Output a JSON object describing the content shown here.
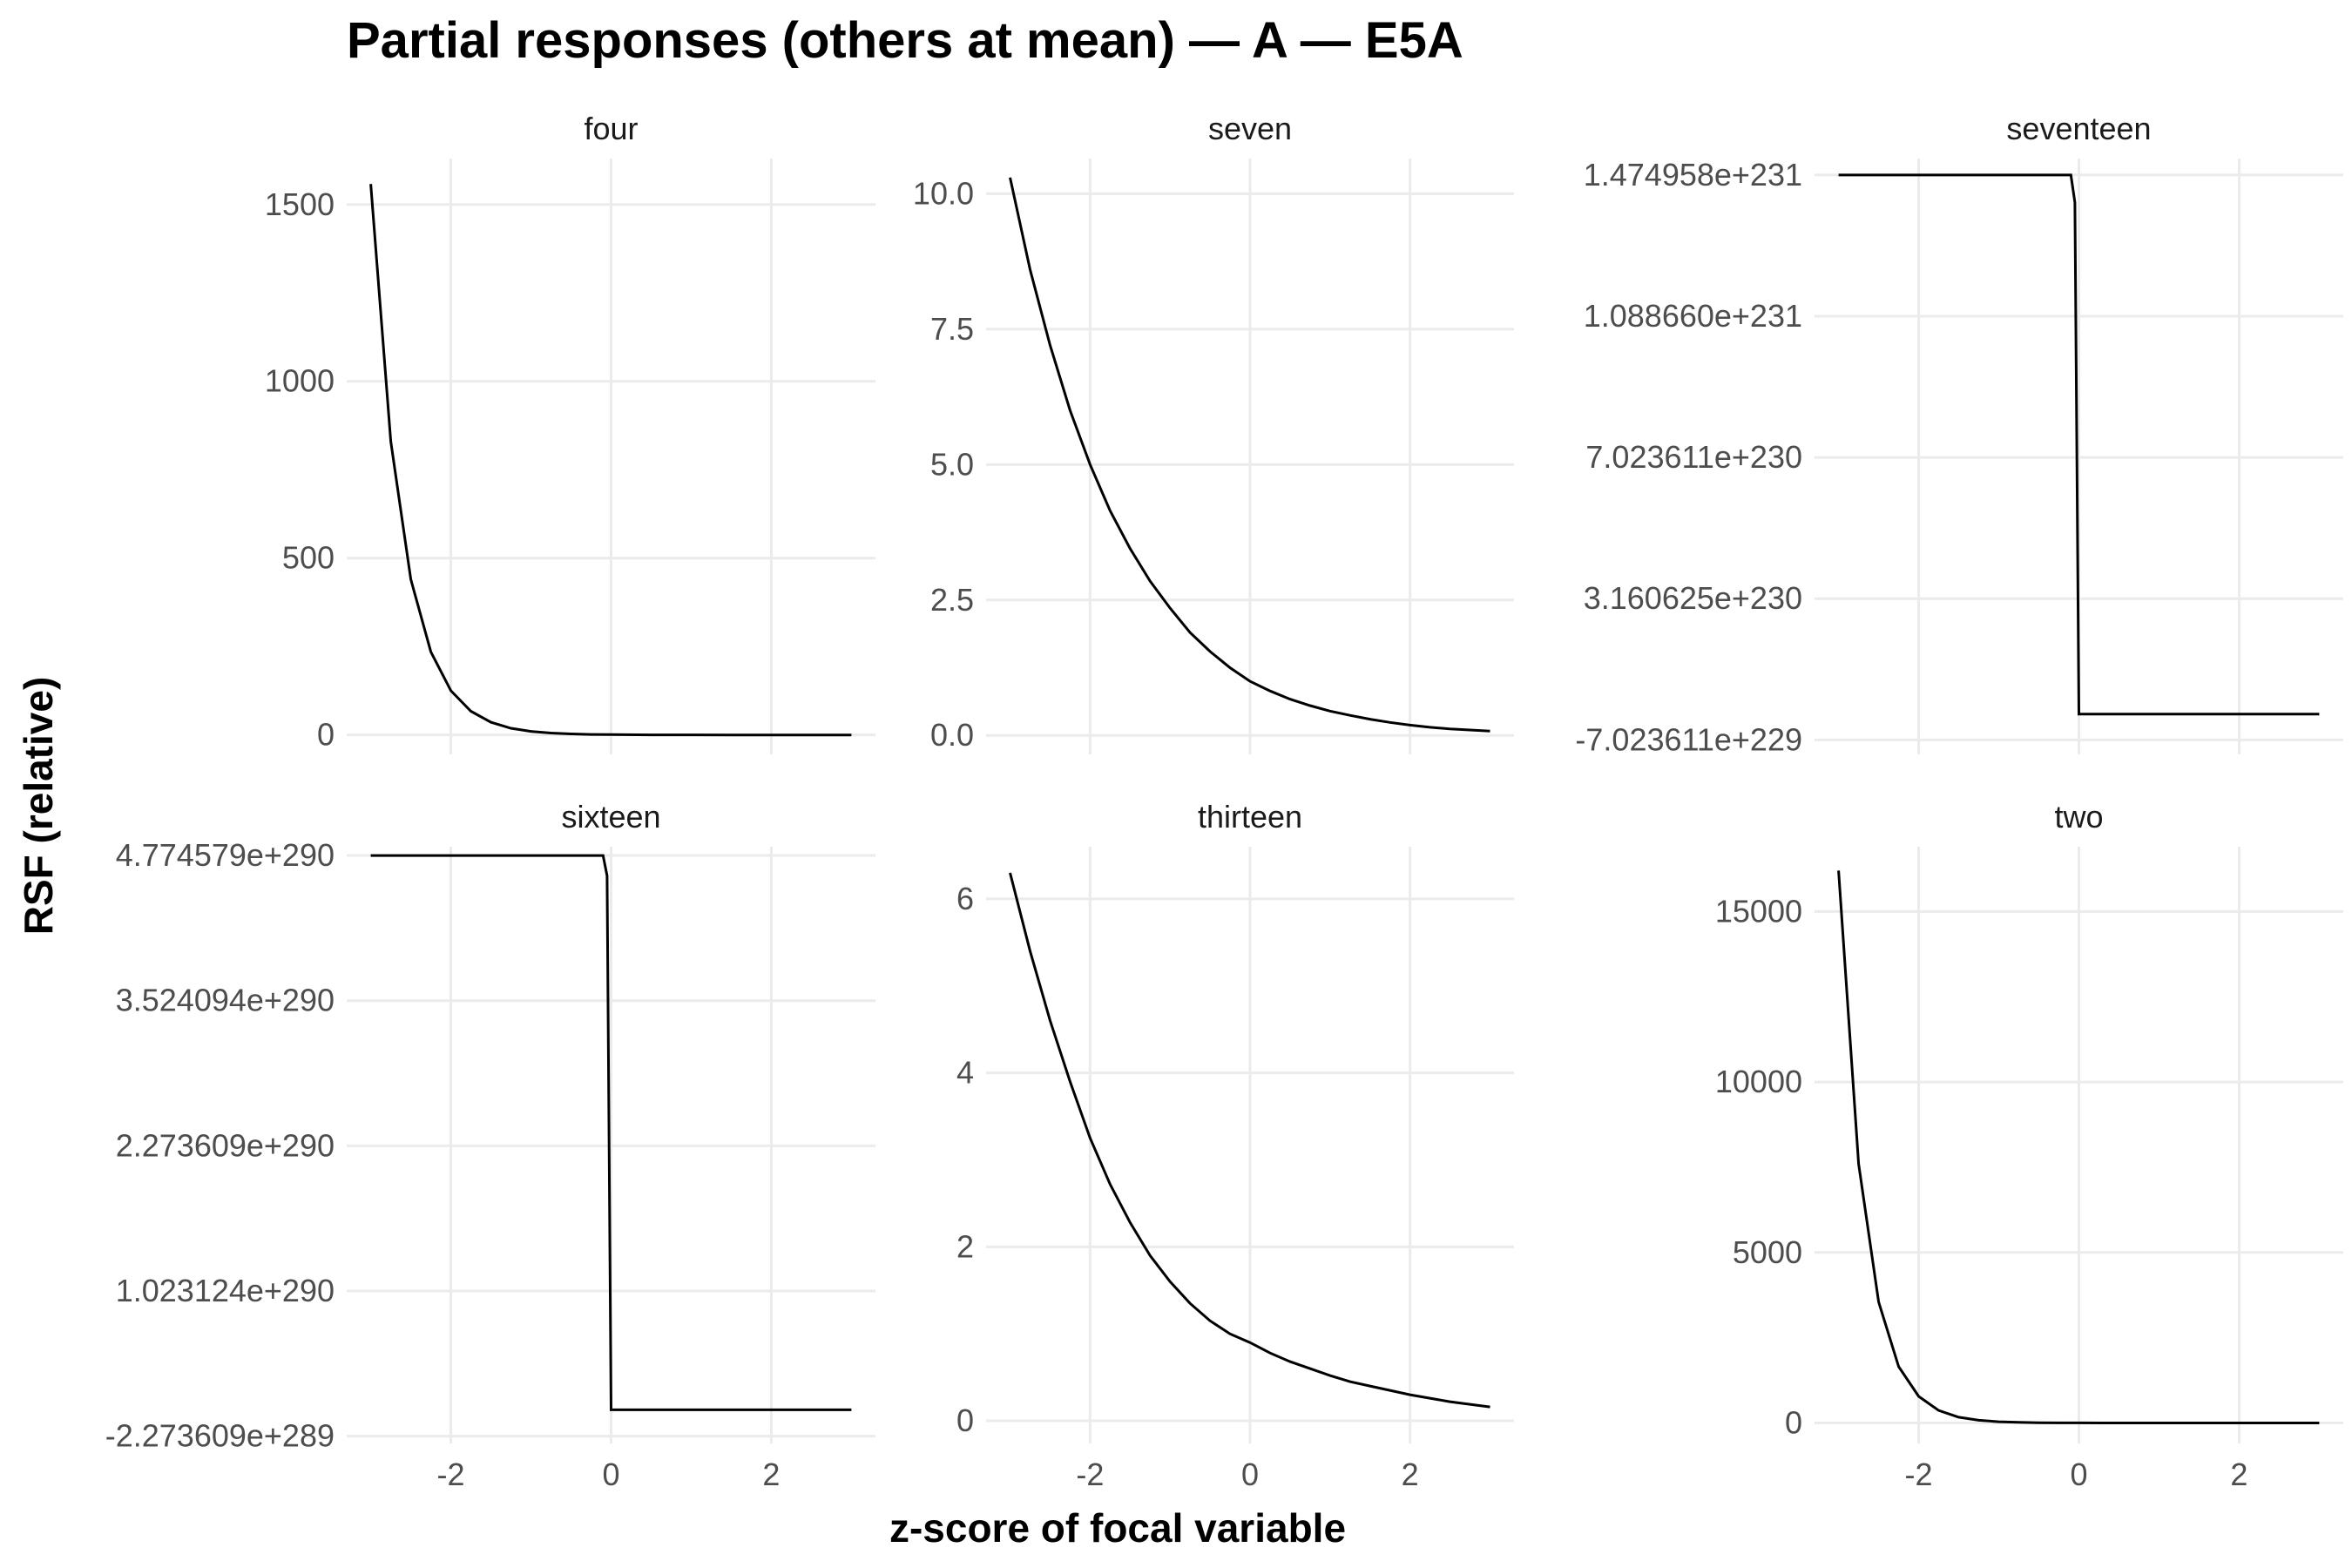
{
  "chart_data": {
    "type": "line",
    "title": "Partial responses (others at mean) — A — E5A",
    "xlabel": "z-score of focal variable",
    "ylabel": "RSF (relative)",
    "x_ticks": [
      "-2",
      "0",
      "2"
    ],
    "panels": [
      {
        "name": "four",
        "x": [
          -3.0,
          -2.75,
          -2.5,
          -2.25,
          -2.0,
          -1.75,
          -1.5,
          -1.25,
          -1.0,
          -0.75,
          -0.5,
          -0.25,
          0.0,
          0.5,
          1.0,
          1.5,
          2.0,
          2.5,
          3.0
        ],
        "y": [
          1558,
          830,
          440,
          235,
          125,
          67,
          36,
          19,
          10,
          5.3,
          2.8,
          1.5,
          0.8,
          0.2,
          0.06,
          0.02,
          0.0,
          0.0,
          0.0
        ],
        "yticks": [
          "0",
          "500",
          "1000",
          "1500"
        ],
        "ytick_values": [
          0,
          500,
          1000,
          1500
        ]
      },
      {
        "name": "seven",
        "x": [
          -3.0,
          -2.75,
          -2.5,
          -2.25,
          -2.0,
          -1.75,
          -1.5,
          -1.25,
          -1.0,
          -0.75,
          -0.5,
          -0.25,
          0.0,
          0.25,
          0.5,
          0.75,
          1.0,
          1.25,
          1.5,
          1.75,
          2.0,
          2.25,
          2.5,
          2.75,
          3.0
        ],
        "y": [
          10.3,
          8.6,
          7.2,
          6.0,
          5.0,
          4.15,
          3.45,
          2.85,
          2.35,
          1.9,
          1.55,
          1.25,
          1.0,
          0.82,
          0.67,
          0.55,
          0.45,
          0.37,
          0.3,
          0.24,
          0.19,
          0.15,
          0.12,
          0.1,
          0.08
        ],
        "yticks": [
          "0.0",
          "2.5",
          "5.0",
          "7.5",
          "10.0"
        ],
        "ytick_values": [
          0,
          2.5,
          5,
          7.5,
          10
        ]
      },
      {
        "name": "seventeen",
        "x": [
          -3.0,
          -0.1,
          -0.05,
          0.0,
          3.0
        ],
        "y": [
          1.474958e+231,
          1.474958e+231,
          1.4e+231,
          0,
          0
        ],
        "yticks": [
          "-7.023611e+229",
          "3.160625e+230",
          "7.023611e+230",
          "1.088660e+231",
          "1.474958e+231"
        ],
        "ytick_values": [
          -7.023611e+229,
          3.160625e+230,
          7.023611e+230,
          1.08866e+231,
          1.474958e+231
        ]
      },
      {
        "name": "sixteen",
        "x": [
          -3.0,
          -0.1,
          -0.05,
          0.0,
          3.0
        ],
        "y": [
          4.774579e+290,
          4.774579e+290,
          4.6e+290,
          0,
          0
        ],
        "yticks": [
          "-2.273609e+289",
          "1.023124e+290",
          "2.273609e+290",
          "3.524094e+290",
          "4.774579e+290"
        ],
        "ytick_values": [
          -2.273609e+289,
          1.023124e+290,
          2.273609e+290,
          3.524094e+290,
          4.774579e+290
        ]
      },
      {
        "name": "thirteen",
        "x": [
          -3.0,
          -2.75,
          -2.5,
          -2.25,
          -2.0,
          -1.75,
          -1.5,
          -1.25,
          -1.0,
          -0.75,
          -0.5,
          -0.25,
          0.0,
          0.25,
          0.5,
          0.75,
          1.0,
          1.25,
          1.5,
          1.75,
          2.0,
          2.25,
          2.5,
          2.75,
          3.0
        ],
        "y": [
          6.3,
          5.4,
          4.6,
          3.9,
          3.25,
          2.72,
          2.28,
          1.9,
          1.6,
          1.35,
          1.15,
          1.0,
          0.9,
          0.78,
          0.68,
          0.6,
          0.52,
          0.45,
          0.4,
          0.35,
          0.3,
          0.26,
          0.22,
          0.19,
          0.16
        ],
        "yticks": [
          "0",
          "2",
          "4",
          "6"
        ],
        "ytick_values": [
          0,
          2,
          4,
          6
        ]
      },
      {
        "name": "two",
        "x": [
          -3.0,
          -2.75,
          -2.5,
          -2.25,
          -2.0,
          -1.75,
          -1.5,
          -1.25,
          -1.0,
          -0.75,
          -0.5,
          -0.25,
          0.0,
          0.5,
          1.0,
          1.5,
          2.0,
          2.5,
          3.0
        ],
        "y": [
          16200,
          7600,
          3550,
          1650,
          780,
          365,
          170,
          80,
          37,
          17,
          8,
          4,
          2,
          0.5,
          0.1,
          0.0,
          0.0,
          0.0,
          0.0
        ],
        "yticks": [
          "0",
          "5000",
          "10000",
          "15000"
        ],
        "ytick_values": [
          0,
          5000,
          10000,
          15000
        ]
      }
    ]
  }
}
